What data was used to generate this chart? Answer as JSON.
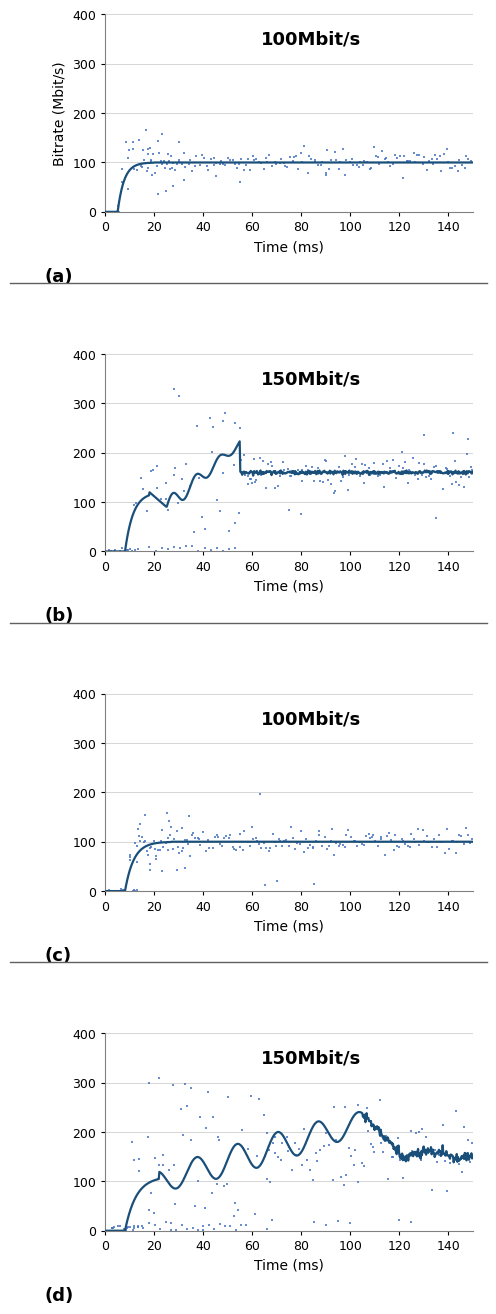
{
  "panels": [
    {
      "label": "(a)",
      "title": "100Mbit/s",
      "ylabel": "Bitrate (Mbit/s)",
      "show_ylabel": true
    },
    {
      "label": "(b)",
      "title": "150Mbit/s",
      "ylabel": "",
      "show_ylabel": false
    },
    {
      "label": "(c)",
      "title": "100Mbit/s",
      "ylabel": "",
      "show_ylabel": false
    },
    {
      "label": "(d)",
      "title": "150Mbit/s",
      "ylabel": "",
      "show_ylabel": false
    }
  ],
  "xticks": [
    0,
    20,
    40,
    60,
    80,
    100,
    120,
    140
  ],
  "xlim": [
    0,
    150
  ],
  "ylim": [
    0,
    400
  ],
  "yticks": [
    0,
    100,
    200,
    300,
    400
  ],
  "xlabel": "Time (ms)",
  "line_color": "#1a4f7a",
  "scatter_color": "#4472c4",
  "grid_color": "#d0d0d0",
  "divider_color": "#606060",
  "fig_width": 4.77,
  "fig_height": 12.67,
  "title_fontsize": 13,
  "label_fontsize": 13,
  "tick_fontsize": 9,
  "axis_label_fontsize": 10
}
